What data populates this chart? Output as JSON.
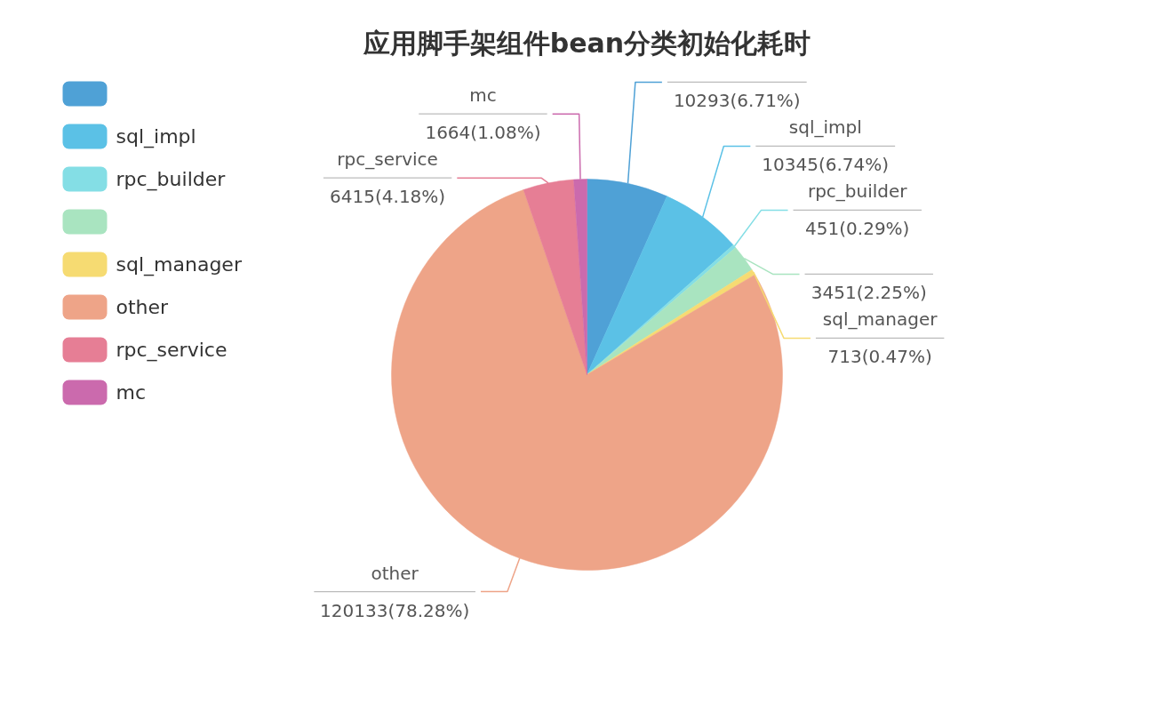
{
  "chart_data": {
    "type": "pie",
    "title": "应用脚手架组件bean分类初始化耗时",
    "categories": [
      null,
      "sql_impl",
      "rpc_builder",
      null,
      "sql_manager",
      "other",
      "rpc_service",
      "mc"
    ],
    "values": [
      10293,
      10345,
      451,
      3451,
      713,
      120133,
      6415,
      1664
    ],
    "colors": [
      "#4fa1d6",
      "#5bc1e6",
      "#84dee5",
      "#a9e4c0",
      "#f6db72",
      "#eea488",
      "#e67e95",
      "#cb6aad"
    ],
    "value_labels": [
      "10293(6.71%)",
      "10345(6.74%)",
      "451(0.29%)",
      "3451(2.25%)",
      "713(0.47%)",
      "120133(78.28%)",
      "6415(4.18%)",
      "1664(1.08%)"
    ],
    "legend": "top left"
  }
}
